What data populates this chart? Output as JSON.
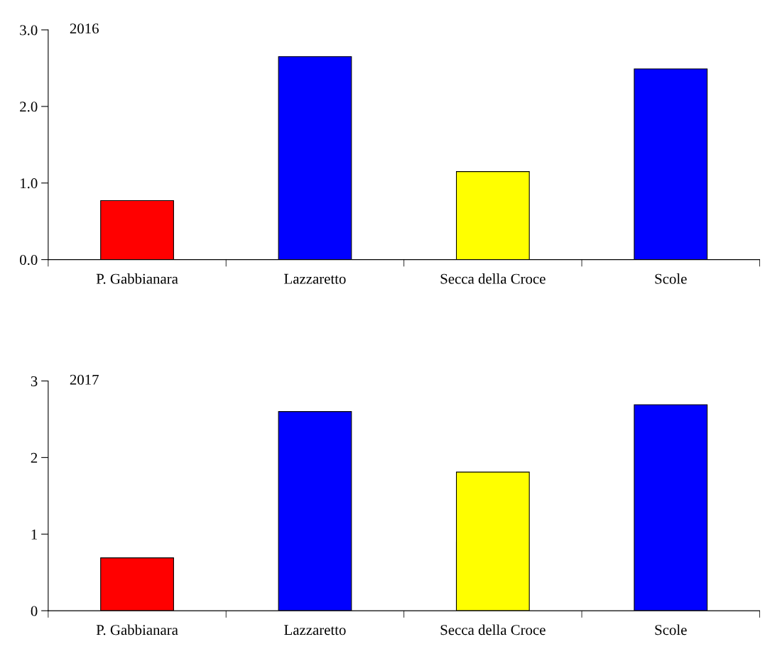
{
  "chart_data": [
    {
      "type": "bar",
      "title": "2016",
      "categories": [
        "P. Gabbianara",
        "Lazzaretto",
        "Secca della Croce",
        "Scole"
      ],
      "values": [
        0.77,
        2.65,
        1.15,
        2.49
      ],
      "colors": [
        "#ff0000",
        "#0000ff",
        "#ffff00",
        "#0000ff"
      ],
      "ylim": [
        0,
        3
      ],
      "yticks": [
        {
          "value": 0,
          "label": "0.0"
        },
        {
          "value": 1,
          "label": "1.0"
        },
        {
          "value": 2,
          "label": "2.0"
        },
        {
          "value": 3,
          "label": "3.0"
        }
      ],
      "grid": false,
      "legend": false
    },
    {
      "type": "bar",
      "title": "2017",
      "categories": [
        "P. Gabbianara",
        "Lazzaretto",
        "Secca della Croce",
        "Scole"
      ],
      "values": [
        0.69,
        2.6,
        1.81,
        2.69
      ],
      "colors": [
        "#ff0000",
        "#0000ff",
        "#ffff00",
        "#0000ff"
      ],
      "ylim": [
        0,
        3
      ],
      "yticks": [
        0,
        1,
        2,
        3
      ],
      "grid": false,
      "legend": false
    }
  ]
}
